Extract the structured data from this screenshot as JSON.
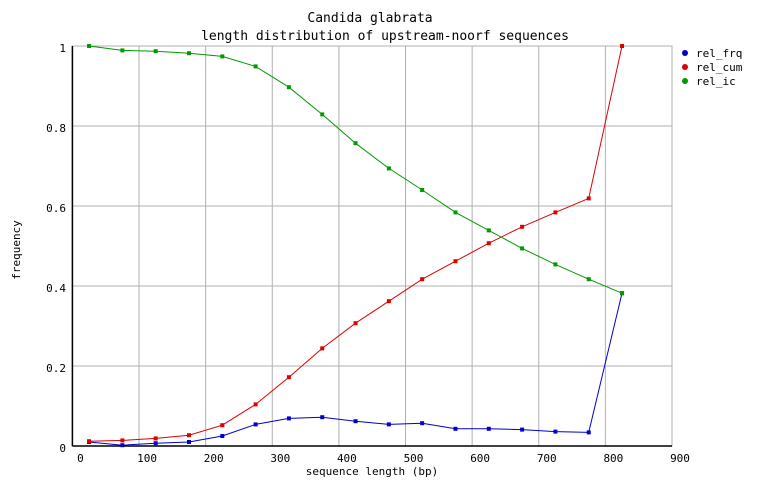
{
  "chart_data": {
    "type": "line",
    "title": "Candida glabrata",
    "subtitle": "length distribution of upstream-noorf sequences",
    "xlabel": "sequence length (bp)",
    "ylabel": "frequency",
    "xlim": [
      0,
      900
    ],
    "ylim": [
      0,
      1
    ],
    "x_ticks": [
      "0",
      "100",
      "200",
      "300",
      "400",
      "500",
      "600",
      "700",
      "800",
      "900"
    ],
    "y_ticks": [
      "0",
      "0.2",
      "0.4",
      "0.6",
      "0.8",
      "1"
    ],
    "grid": true,
    "legend_position": "right",
    "x": [
      25,
      75,
      125,
      175,
      225,
      275,
      325,
      375,
      425,
      475,
      525,
      575,
      625,
      675,
      725,
      775,
      825
    ],
    "series": [
      {
        "name": "rel_frq",
        "color": "#0000cc",
        "values": [
          0.01,
          0.002,
          0.007,
          0.01,
          0.025,
          0.054,
          0.069,
          0.072,
          0.062,
          0.054,
          0.057,
          0.043,
          0.043,
          0.041,
          0.036,
          0.034,
          0.382
        ]
      },
      {
        "name": "rel_cum",
        "color": "#dd0000",
        "values": [
          0.012,
          0.014,
          0.019,
          0.027,
          0.052,
          0.104,
          0.172,
          0.244,
          0.307,
          0.362,
          0.417,
          0.462,
          0.507,
          0.548,
          0.584,
          0.619,
          1.0
        ]
      },
      {
        "name": "rel_ic",
        "color": "#009900",
        "values": [
          1.0,
          0.989,
          0.987,
          0.982,
          0.974,
          0.949,
          0.897,
          0.829,
          0.757,
          0.694,
          0.64,
          0.584,
          0.539,
          0.494,
          0.454,
          0.417,
          0.382
        ]
      }
    ]
  }
}
